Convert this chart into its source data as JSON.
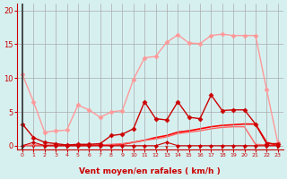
{
  "bg_color": "#d6f0f0",
  "grid_color": "#aaaaaa",
  "xlabel": "Vent moyen/en rafales ( km/h )",
  "x_ticks": [
    0,
    1,
    2,
    3,
    4,
    5,
    6,
    7,
    8,
    9,
    10,
    11,
    12,
    13,
    14,
    15,
    16,
    17,
    18,
    19,
    20,
    21,
    22,
    23
  ],
  "y_ticks": [
    0,
    5,
    10,
    15,
    20
  ],
  "ylim": [
    -0.5,
    21
  ],
  "xlim": [
    -0.5,
    23.5
  ],
  "series": [
    {
      "x": [
        0,
        1,
        2,
        3,
        4,
        5,
        6,
        7,
        8,
        9,
        10,
        11,
        12,
        13,
        14,
        15,
        16,
        17,
        18,
        19,
        20,
        21,
        22,
        23
      ],
      "y": [
        10.5,
        6.5,
        2.0,
        2.2,
        2.3,
        6.0,
        5.3,
        4.2,
        5.0,
        5.2,
        9.8,
        13.0,
        13.2,
        15.3,
        16.4,
        15.2,
        15.1,
        16.3,
        16.5,
        16.3,
        16.3,
        16.3,
        8.3,
        0.5
      ],
      "color": "#ff9999",
      "marker": "D",
      "markersize": 2.5,
      "linewidth": 1.0,
      "zorder": 2
    },
    {
      "x": [
        0,
        1,
        2,
        3,
        4,
        5,
        6,
        7,
        8,
        9,
        10,
        11,
        12,
        13,
        14,
        15,
        16,
        17,
        18,
        19,
        20,
        21,
        22,
        23
      ],
      "y": [
        3.2,
        1.2,
        0.5,
        0.3,
        0.1,
        0.2,
        0.2,
        0.3,
        1.5,
        1.7,
        2.5,
        6.5,
        4.0,
        3.8,
        6.5,
        4.2,
        4.0,
        7.5,
        5.2,
        5.3,
        5.3,
        3.2,
        0.3,
        0.3
      ],
      "color": "#cc0000",
      "marker": "D",
      "markersize": 2.5,
      "linewidth": 1.0,
      "zorder": 3
    },
    {
      "x": [
        0,
        1,
        2,
        3,
        4,
        5,
        6,
        7,
        8,
        9,
        10,
        11,
        12,
        13,
        14,
        15,
        16,
        17,
        18,
        19,
        20,
        21,
        22,
        23
      ],
      "y": [
        0.0,
        0.5,
        0.0,
        0.0,
        0.0,
        0.0,
        0.0,
        0.0,
        0.0,
        0.0,
        0.0,
        0.0,
        0.0,
        0.5,
        0.0,
        0.0,
        0.0,
        0.0,
        0.0,
        0.0,
        0.0,
        0.0,
        0.0,
        0.0
      ],
      "color": "#cc0000",
      "marker": "D",
      "markersize": 2.0,
      "linewidth": 0.8,
      "zorder": 2
    },
    {
      "x": [
        0,
        1,
        2,
        3,
        4,
        5,
        6,
        7,
        8,
        9,
        10,
        11,
        12,
        13,
        14,
        15,
        16,
        17,
        18,
        19,
        20,
        21,
        22,
        23
      ],
      "y": [
        0.0,
        0.0,
        0.0,
        0.0,
        0.0,
        0.0,
        0.0,
        0.1,
        0.1,
        0.2,
        0.5,
        0.8,
        1.2,
        1.5,
        2.0,
        2.2,
        2.5,
        2.8,
        3.0,
        3.1,
        3.2,
        3.2,
        0.5,
        0.0
      ],
      "color": "#ff0000",
      "marker": null,
      "markersize": 0,
      "linewidth": 1.2,
      "zorder": 1
    },
    {
      "x": [
        0,
        1,
        2,
        3,
        4,
        5,
        6,
        7,
        8,
        9,
        10,
        11,
        12,
        13,
        14,
        15,
        16,
        17,
        18,
        19,
        20,
        21,
        22,
        23
      ],
      "y": [
        0.0,
        0.1,
        0.1,
        0.1,
        0.1,
        0.1,
        0.1,
        0.1,
        0.2,
        0.3,
        0.5,
        0.8,
        1.0,
        1.3,
        1.8,
        2.0,
        2.2,
        2.5,
        2.7,
        2.8,
        2.8,
        0.2,
        0.1,
        0.0
      ],
      "color": "#ff6666",
      "marker": null,
      "markersize": 0,
      "linewidth": 1.0,
      "zorder": 1
    }
  ],
  "arrow_color": "#cc0000",
  "tick_label_color": "#cc0000",
  "xlabel_color": "#cc0000",
  "axis_color": "#cc0000",
  "dark_line_color": "#333333"
}
